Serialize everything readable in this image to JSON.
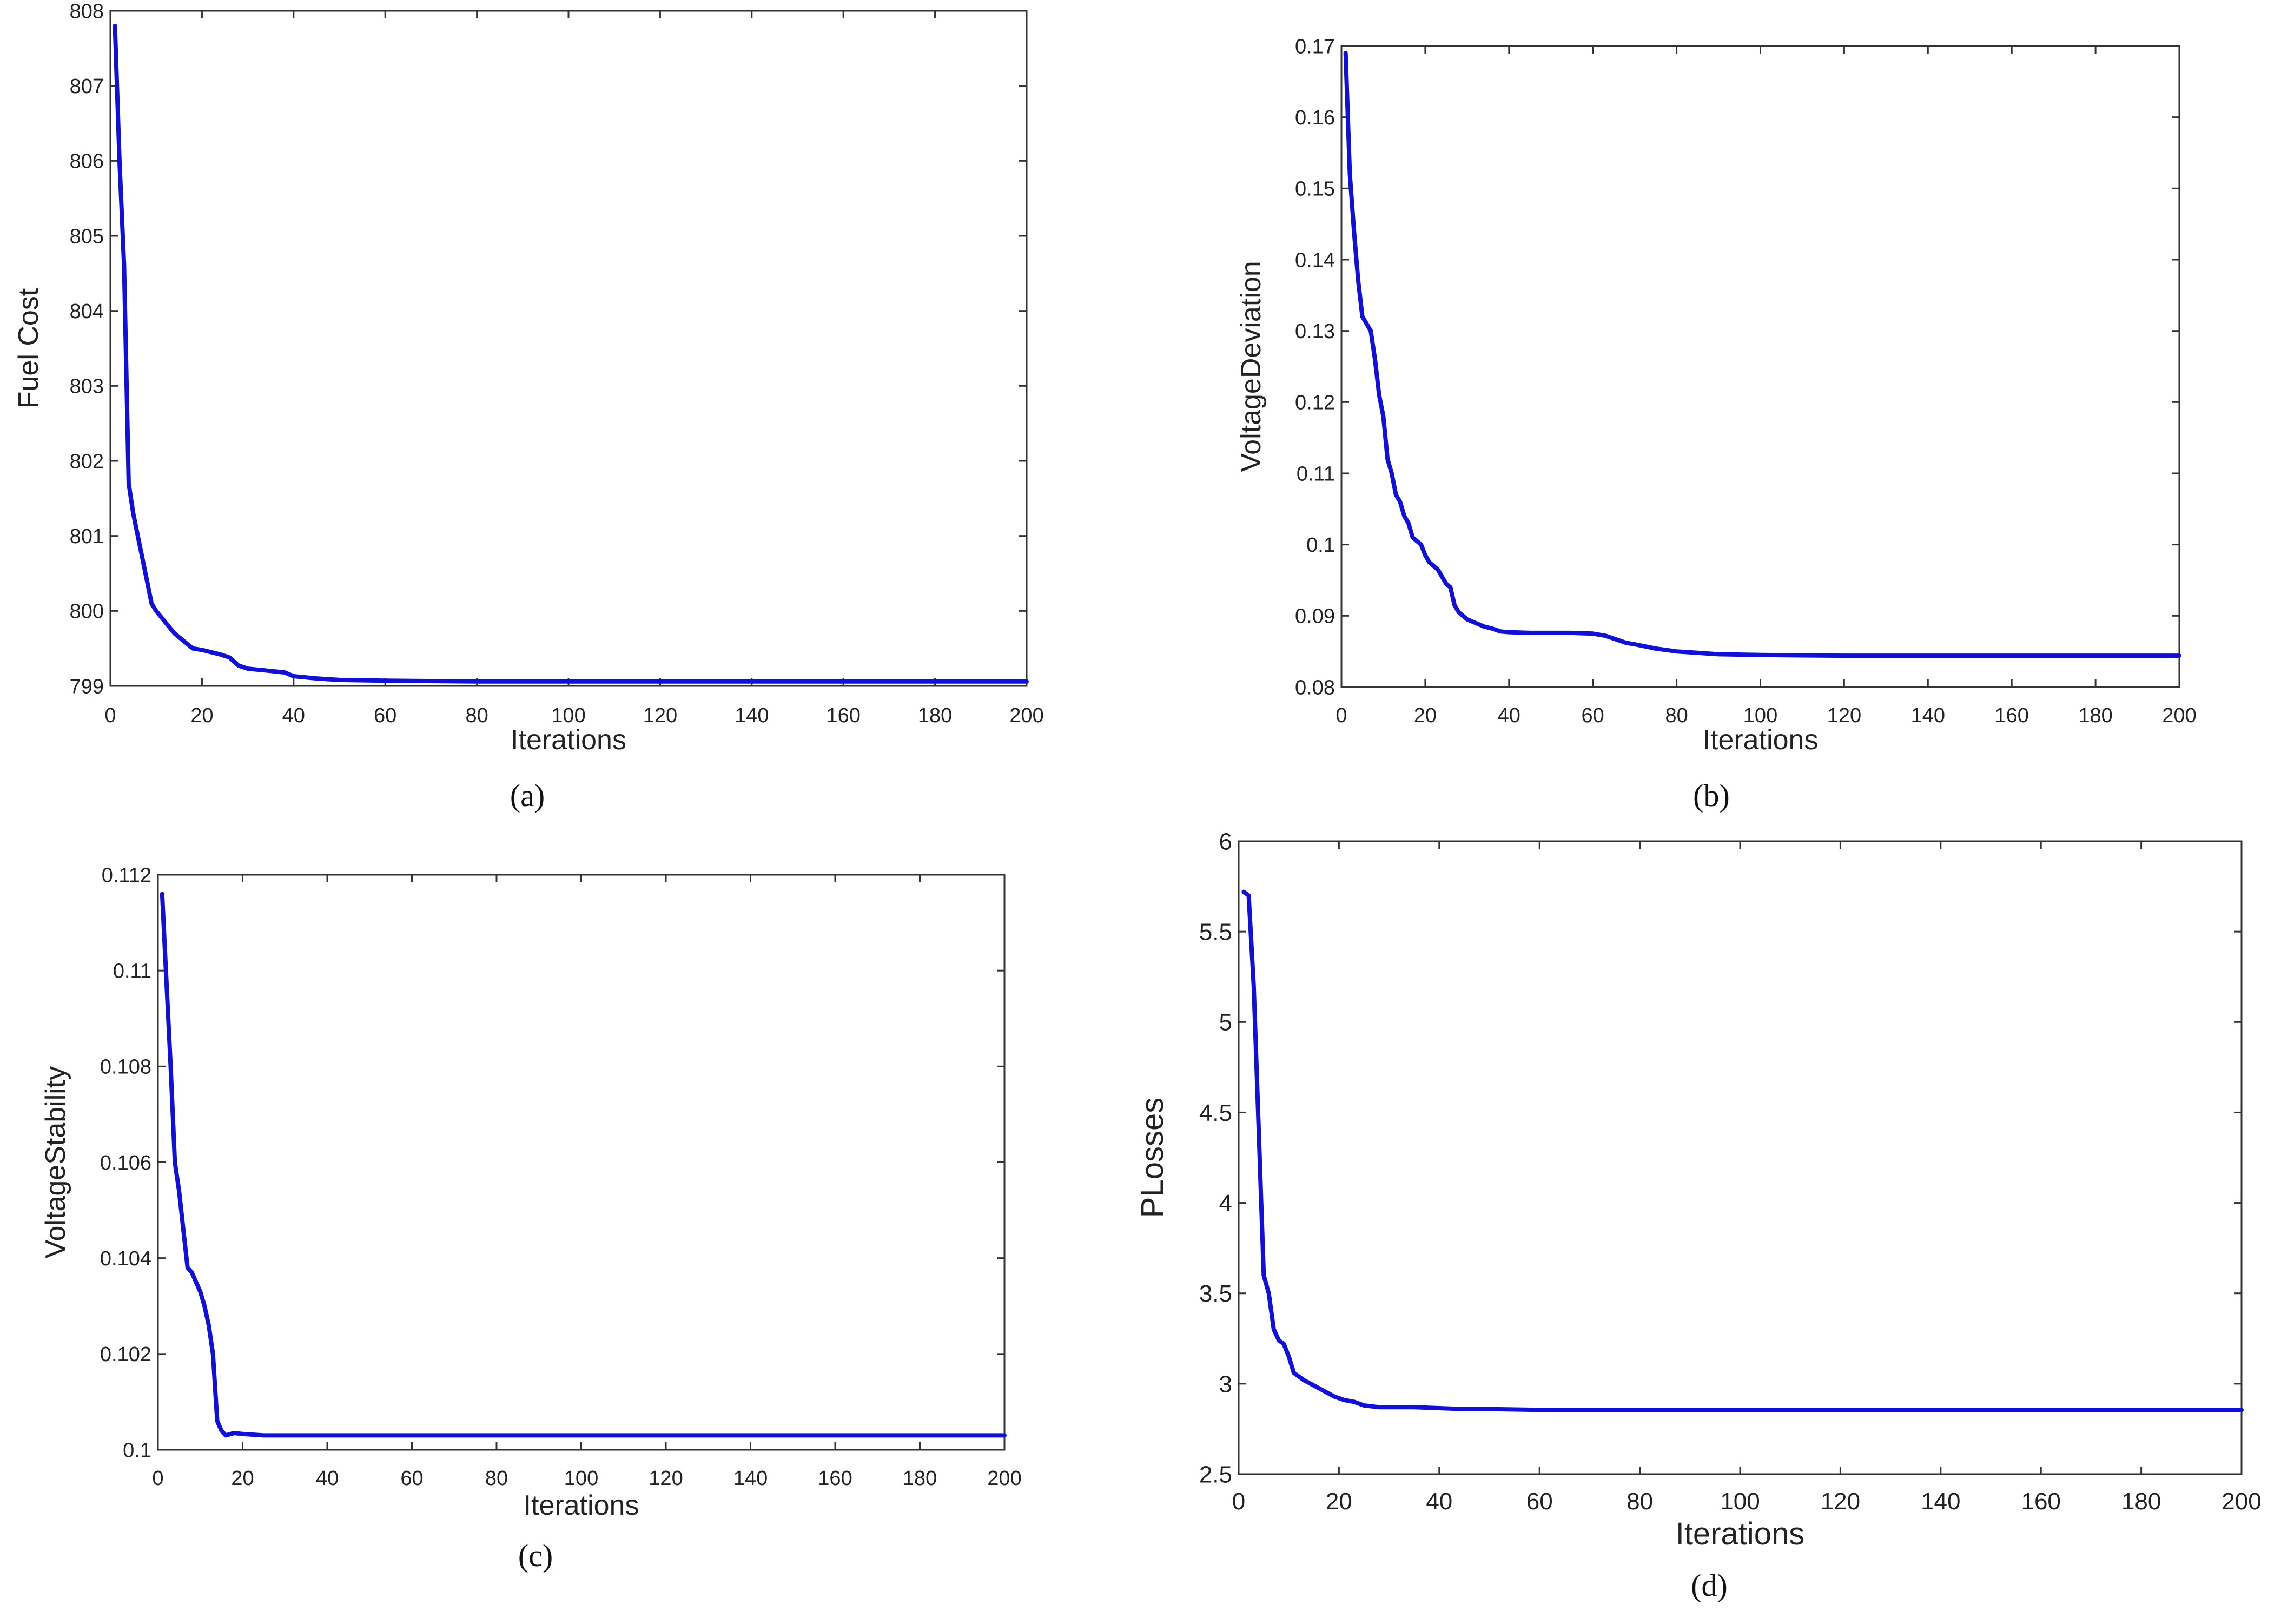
{
  "figure": {
    "line_color": "#1010d8",
    "panel_labels": [
      "(a)",
      "(b)",
      "(c)",
      "(d)"
    ]
  },
  "chart_data": [
    {
      "type": "line",
      "panel": "(a)",
      "xlabel": "Iterations",
      "ylabel": "Fuel Cost",
      "xlim": [
        0,
        200
      ],
      "ylim": [
        799,
        808
      ],
      "xticks": [
        "0",
        "20",
        "40",
        "60",
        "80",
        "100",
        "120",
        "140",
        "160",
        "180",
        "200"
      ],
      "yticks": [
        "799",
        "800",
        "801",
        "802",
        "803",
        "804",
        "805",
        "806",
        "807",
        "808"
      ],
      "grid": false,
      "series": [
        {
          "name": "Fuel Cost",
          "x": [
            1,
            2,
            3,
            4,
            5,
            6,
            7,
            8,
            9,
            10,
            12,
            14,
            16,
            18,
            20,
            22,
            24,
            26,
            28,
            30,
            35,
            38,
            40,
            45,
            50,
            60,
            80,
            100,
            150,
            200
          ],
          "y": [
            807.8,
            806.0,
            804.6,
            801.7,
            801.3,
            801.0,
            800.7,
            800.4,
            800.1,
            800.0,
            799.85,
            799.7,
            799.6,
            799.5,
            799.48,
            799.45,
            799.42,
            799.38,
            799.27,
            799.23,
            799.2,
            799.18,
            799.13,
            799.1,
            799.08,
            799.07,
            799.06,
            799.06,
            799.06,
            799.06
          ]
        }
      ]
    },
    {
      "type": "line",
      "panel": "(b)",
      "xlabel": "Iterations",
      "ylabel": "VoltageDeviation",
      "xlim": [
        0,
        200
      ],
      "ylim": [
        0.08,
        0.17
      ],
      "xticks": [
        "0",
        "20",
        "40",
        "60",
        "80",
        "100",
        "120",
        "140",
        "160",
        "180",
        "200"
      ],
      "yticks": [
        "0.08",
        "0.09",
        "0.1",
        "0.11",
        "0.12",
        "0.13",
        "0.14",
        "0.15",
        "0.16",
        "0.17"
      ],
      "grid": false,
      "series": [
        {
          "name": "VoltageDeviation",
          "x": [
            1,
            2,
            3,
            4,
            5,
            6,
            7,
            8,
            9,
            10,
            11,
            12,
            13,
            14,
            15,
            16,
            17,
            18,
            19,
            20,
            21,
            22,
            23,
            24,
            25,
            26,
            27,
            28,
            29,
            30,
            32,
            34,
            36,
            38,
            40,
            45,
            50,
            55,
            60,
            63,
            65,
            68,
            70,
            75,
            80,
            85,
            90,
            100,
            120,
            150,
            200
          ],
          "y": [
            0.169,
            0.152,
            0.144,
            0.137,
            0.132,
            0.131,
            0.13,
            0.126,
            0.121,
            0.118,
            0.112,
            0.11,
            0.107,
            0.106,
            0.104,
            0.103,
            0.101,
            0.1005,
            0.1,
            0.0985,
            0.0975,
            0.097,
            0.0965,
            0.0955,
            0.0945,
            0.094,
            0.0915,
            0.0905,
            0.09,
            0.0895,
            0.089,
            0.0885,
            0.0882,
            0.0878,
            0.0877,
            0.0876,
            0.0876,
            0.0876,
            0.0875,
            0.0872,
            0.0868,
            0.0862,
            0.086,
            0.0854,
            0.085,
            0.0848,
            0.0846,
            0.0845,
            0.0844,
            0.0844,
            0.0844
          ]
        }
      ]
    },
    {
      "type": "line",
      "panel": "(c)",
      "xlabel": "Iterations",
      "ylabel": "VoltageStability",
      "xlim": [
        0,
        200
      ],
      "ylim": [
        0.1,
        0.112
      ],
      "xticks": [
        "0",
        "20",
        "40",
        "60",
        "80",
        "100",
        "120",
        "140",
        "160",
        "180",
        "200"
      ],
      "yticks": [
        "0.1",
        "0.102",
        "0.104",
        "0.106",
        "0.108",
        "0.11",
        "0.112"
      ],
      "grid": false,
      "series": [
        {
          "name": "VoltageStability",
          "x": [
            1,
            2,
            3,
            4,
            5,
            6,
            7,
            8,
            9,
            10,
            11,
            12,
            13,
            14,
            15,
            16,
            18,
            20,
            25,
            30,
            40,
            60,
            100,
            150,
            200
          ],
          "y": [
            0.1116,
            0.1098,
            0.108,
            0.106,
            0.1054,
            0.1046,
            0.1038,
            0.1037,
            0.1035,
            0.1033,
            0.103,
            0.1026,
            0.102,
            0.1006,
            0.1004,
            0.1003,
            0.10035,
            0.10033,
            0.1003,
            0.1003,
            0.1003,
            0.1003,
            0.1003,
            0.1003,
            0.1003
          ]
        }
      ]
    },
    {
      "type": "line",
      "panel": "(d)",
      "xlabel": "Iterations",
      "ylabel": "PLosses",
      "xlim": [
        0,
        200
      ],
      "ylim": [
        2.5,
        6
      ],
      "xticks": [
        "0",
        "20",
        "40",
        "60",
        "80",
        "100",
        "120",
        "140",
        "160",
        "180",
        "200"
      ],
      "yticks": [
        "2.5",
        "3",
        "3.5",
        "4",
        "4.5",
        "5",
        "5.5",
        "6"
      ],
      "grid": false,
      "series": [
        {
          "name": "PLosses",
          "x": [
            1,
            2,
            3,
            4,
            5,
            6,
            7,
            8,
            9,
            10,
            11,
            12,
            13,
            15,
            17,
            19,
            21,
            23,
            25,
            28,
            30,
            35,
            40,
            45,
            50,
            60,
            80,
            100,
            150,
            200
          ],
          "y": [
            5.72,
            5.7,
            5.2,
            4.4,
            3.6,
            3.5,
            3.3,
            3.24,
            3.22,
            3.15,
            3.06,
            3.04,
            3.02,
            2.99,
            2.96,
            2.93,
            2.91,
            2.9,
            2.88,
            2.87,
            2.87,
            2.87,
            2.865,
            2.86,
            2.86,
            2.855,
            2.855,
            2.855,
            2.855,
            2.855
          ]
        }
      ]
    }
  ]
}
